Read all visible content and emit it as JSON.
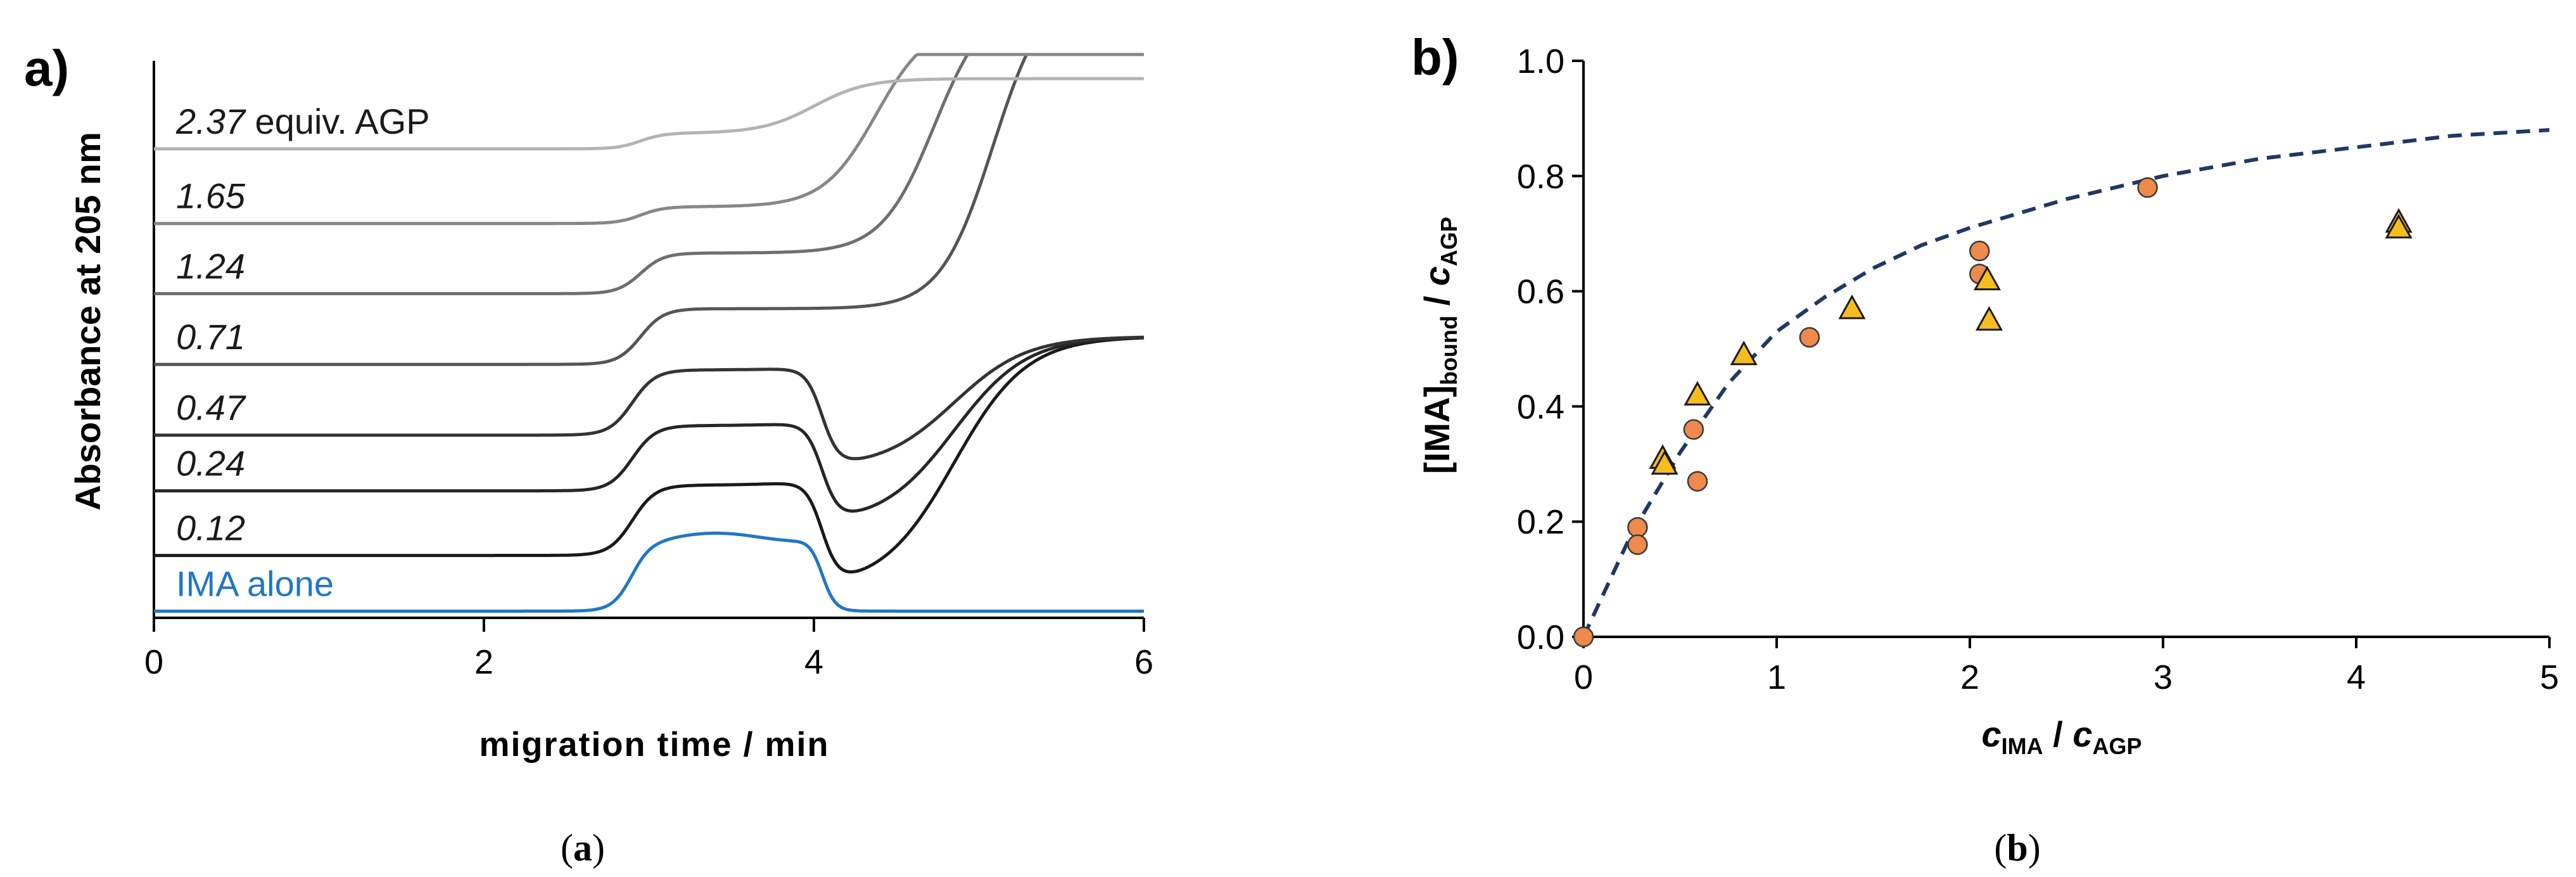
{
  "figure": {
    "caption_a_paren": "(",
    "caption_a_letter": "a",
    "caption_a_close": ")",
    "caption_b_paren": "(",
    "caption_b_letter": "b",
    "caption_b_close": ")"
  },
  "colors": {
    "axis": "#000000",
    "blue_trace": "#1f77c4",
    "orange_marker": "#ed8a4c",
    "yellow_marker": "#f5bd1f",
    "fit_line": "#1f3864"
  },
  "chart_data": [
    {
      "type": "line",
      "panel_label": "a)",
      "title": "",
      "xlabel": "migration time / min",
      "ylabel": "Absorbance at 205 nm",
      "xlim": [
        0,
        6
      ],
      "ylim": [
        0,
        10
      ],
      "xticks": [
        0,
        2,
        4,
        6
      ],
      "tick_labels": [
        "0",
        "2",
        "4",
        "6"
      ],
      "x_unit_note": "y axis has no numeric ticks; traces are vertically offset",
      "equiv_suffix": "equiv. AGP",
      "series": [
        {
          "name": "IMA alone",
          "label": "IMA alone",
          "color": "#1f77c4",
          "baseline": 0.12,
          "plateau": 1.45,
          "end": 0.12,
          "kind": "alone"
        },
        {
          "name": "0.12",
          "label": "0.12",
          "color": "#1a1a1a",
          "baseline": 1.12,
          "plateau": 2.38,
          "end": 5.05,
          "kind": "dip"
        },
        {
          "name": "0.24",
          "label": "0.24",
          "color": "#262626",
          "baseline": 2.28,
          "plateau": 3.45,
          "end": 5.05,
          "kind": "dip"
        },
        {
          "name": "0.47",
          "label": "0.47",
          "color": "#333333",
          "baseline": 3.28,
          "plateau": 4.45,
          "end": 5.05,
          "kind": "dip"
        },
        {
          "name": "0.71",
          "label": "0.71",
          "color": "#555555",
          "baseline": 4.55,
          "plateau": 5.55,
          "end": 10.4,
          "kind": "rise"
        },
        {
          "name": "1.24",
          "label": "1.24",
          "color": "#6e6e6e",
          "baseline": 5.82,
          "plateau": 6.55,
          "end": 10.4,
          "kind": "rise"
        },
        {
          "name": "1.65",
          "label": "1.65",
          "color": "#878787",
          "baseline": 7.08,
          "plateau": 7.38,
          "end": 10.4,
          "kind": "rise"
        },
        {
          "name": "2.37",
          "label": "2.37",
          "color": "#b3b3b3",
          "baseline": 8.42,
          "plateau": 8.7,
          "end": 9.4,
          "kind": "rise"
        }
      ]
    },
    {
      "type": "scatter",
      "panel_label": "b)",
      "title": "",
      "xlabel_main": "c",
      "xlabel_sub": "IMA",
      "xlabel_sep": " / ",
      "xlabel_main2": "c",
      "xlabel_sub2": "AGP",
      "ylabel_main": "[IMA]",
      "ylabel_sub": "bound",
      "ylabel_sep": " / ",
      "ylabel_main2": "c",
      "ylabel_sub2": "AGP",
      "xlim": [
        0,
        5
      ],
      "ylim": [
        0,
        1.0
      ],
      "xticks": [
        "0",
        "1",
        "2",
        "3",
        "4",
        "5"
      ],
      "yticks": [
        "0.0",
        "0.2",
        "0.4",
        "0.6",
        "0.8",
        "1.0"
      ],
      "series": [
        {
          "name": "circles",
          "marker": "circle",
          "color": "#ed8a4c",
          "x": [
            0.0,
            0.28,
            0.28,
            0.57,
            0.59,
            1.17,
            2.05,
            2.05,
            2.92
          ],
          "y": [
            0.0,
            0.19,
            0.16,
            0.36,
            0.27,
            0.52,
            0.67,
            0.63,
            0.78
          ]
        },
        {
          "name": "triangles",
          "marker": "triangle",
          "color": "#f5bd1f",
          "x": [
            0.41,
            0.42,
            0.59,
            0.83,
            1.39,
            2.09,
            2.1,
            4.22,
            4.22
          ],
          "y": [
            0.31,
            0.3,
            0.42,
            0.49,
            0.57,
            0.62,
            0.55,
            0.72,
            0.71
          ]
        },
        {
          "name": "binding fit",
          "type": "dashed-line",
          "color": "#1f3864",
          "x": [
            0.0,
            0.25,
            0.5,
            0.75,
            1.0,
            1.25,
            1.5,
            1.75,
            2.0,
            2.5,
            3.0,
            3.5,
            4.0,
            4.5,
            5.0
          ],
          "y": [
            0.0,
            0.18,
            0.32,
            0.44,
            0.53,
            0.59,
            0.64,
            0.68,
            0.71,
            0.76,
            0.8,
            0.83,
            0.85,
            0.87,
            0.88
          ]
        }
      ]
    }
  ]
}
